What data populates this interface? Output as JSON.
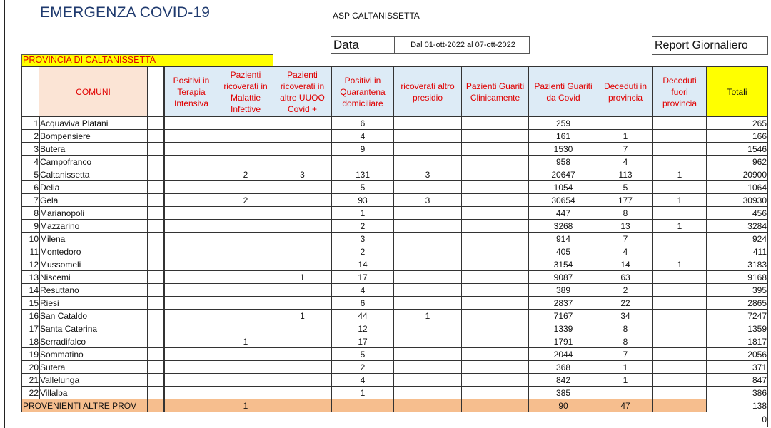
{
  "header": {
    "title": "EMERGENZA COVID-19",
    "org": "ASP CALTANISSETTA",
    "data_label": "Data",
    "date_range": "Dal 01-ott-2022 al 07-ott-2022",
    "report_type": "Report Giornaliero",
    "province_label": "PROVINCIA DI CALTANISSETTA"
  },
  "colors": {
    "header_bg": "#ddebf6",
    "header_text": "#e00000",
    "comuni_bg": "#fbe4d5",
    "totali_bg": "#ffff00",
    "provenienti_bg": "#f6be8e"
  },
  "table": {
    "comuni_header": "COMUNI",
    "columns": [
      "Positivi in Terapia Intensiva",
      "Pazienti ricoverati in Malattie Infettive",
      "Pazienti ricoverati in altre UUOO Covid +",
      "Positivi in Quarantena domiciliare",
      "ricoverati altro presidio",
      "Pazienti Guariti Clinicamente",
      "Pazienti Guariti da Covid",
      "Deceduti in provincia",
      "Deceduti fuori provincia",
      "Totali"
    ],
    "rows": [
      {
        "n": "1",
        "name": "Acquaviva Platani",
        "v": [
          "",
          "",
          "",
          "6",
          "",
          "",
          "259",
          "",
          "",
          "265"
        ]
      },
      {
        "n": "2",
        "name": "Bompensiere",
        "v": [
          "",
          "",
          "",
          "4",
          "",
          "",
          "161",
          "1",
          "",
          "166"
        ]
      },
      {
        "n": "3",
        "name": "Butera",
        "v": [
          "",
          "",
          "",
          "9",
          "",
          "",
          "1530",
          "7",
          "",
          "1546"
        ]
      },
      {
        "n": "4",
        "name": "Campofranco",
        "v": [
          "",
          "",
          "",
          "",
          "",
          "",
          "958",
          "4",
          "",
          "962"
        ]
      },
      {
        "n": "5",
        "name": "Caltanissetta",
        "v": [
          "",
          "2",
          "3",
          "131",
          "3",
          "",
          "20647",
          "113",
          "1",
          "20900"
        ]
      },
      {
        "n": "6",
        "name": "Delia",
        "v": [
          "",
          "",
          "",
          "5",
          "",
          "",
          "1054",
          "5",
          "",
          "1064"
        ]
      },
      {
        "n": "7",
        "name": "Gela",
        "v": [
          "",
          "2",
          "",
          "93",
          "3",
          "",
          "30654",
          "177",
          "1",
          "30930"
        ]
      },
      {
        "n": "8",
        "name": "Marianopoli",
        "v": [
          "",
          "",
          "",
          "1",
          "",
          "",
          "447",
          "8",
          "",
          "456"
        ]
      },
      {
        "n": "9",
        "name": "Mazzarino",
        "v": [
          "",
          "",
          "",
          "2",
          "",
          "",
          "3268",
          "13",
          "1",
          "3284"
        ]
      },
      {
        "n": "10",
        "name": "Milena",
        "v": [
          "",
          "",
          "",
          "3",
          "",
          "",
          "914",
          "7",
          "",
          "924"
        ]
      },
      {
        "n": "11",
        "name": "Montedoro",
        "v": [
          "",
          "",
          "",
          "2",
          "",
          "",
          "405",
          "4",
          "",
          "411"
        ]
      },
      {
        "n": "12",
        "name": "Mussomeli",
        "v": [
          "",
          "",
          "",
          "14",
          "",
          "",
          "3154",
          "14",
          "1",
          "3183"
        ]
      },
      {
        "n": "13",
        "name": "Niscemi",
        "v": [
          "",
          "",
          "1",
          "17",
          "",
          "",
          "9087",
          "63",
          "",
          "9168"
        ]
      },
      {
        "n": "14",
        "name": "Resuttano",
        "v": [
          "",
          "",
          "",
          "4",
          "",
          "",
          "389",
          "2",
          "",
          "395"
        ]
      },
      {
        "n": "15",
        "name": "Riesi",
        "v": [
          "",
          "",
          "",
          "6",
          "",
          "",
          "2837",
          "22",
          "",
          "2865"
        ]
      },
      {
        "n": "16",
        "name": "San Cataldo",
        "v": [
          "",
          "",
          "1",
          "44",
          "1",
          "",
          "7167",
          "34",
          "",
          "7247"
        ]
      },
      {
        "n": "17",
        "name": "Santa Caterina",
        "v": [
          "",
          "",
          "",
          "12",
          "",
          "",
          "1339",
          "8",
          "",
          "1359"
        ]
      },
      {
        "n": "18",
        "name": "Serradifalco",
        "v": [
          "",
          "1",
          "",
          "17",
          "",
          "",
          "1791",
          "8",
          "",
          "1817"
        ]
      },
      {
        "n": "19",
        "name": "Sommatino",
        "v": [
          "",
          "",
          "",
          "5",
          "",
          "",
          "2044",
          "7",
          "",
          "2056"
        ]
      },
      {
        "n": "20",
        "name": "Sutera",
        "v": [
          "",
          "",
          "",
          "2",
          "",
          "",
          "368",
          "1",
          "",
          "371"
        ]
      },
      {
        "n": "21",
        "name": "Vallelunga",
        "v": [
          "",
          "",
          "",
          "4",
          "",
          "",
          "842",
          "1",
          "",
          "847"
        ]
      },
      {
        "n": "22",
        "name": "Villalba",
        "v": [
          "",
          "",
          "",
          "1",
          "",
          "",
          "385",
          "",
          "",
          "386"
        ]
      }
    ],
    "provenienti": {
      "name": "PROVENIENTI ALTRE PROV",
      "v": [
        "",
        "1",
        "",
        "",
        "",
        "",
        "90",
        "47",
        "",
        "138"
      ]
    },
    "grand_total": "0"
  }
}
